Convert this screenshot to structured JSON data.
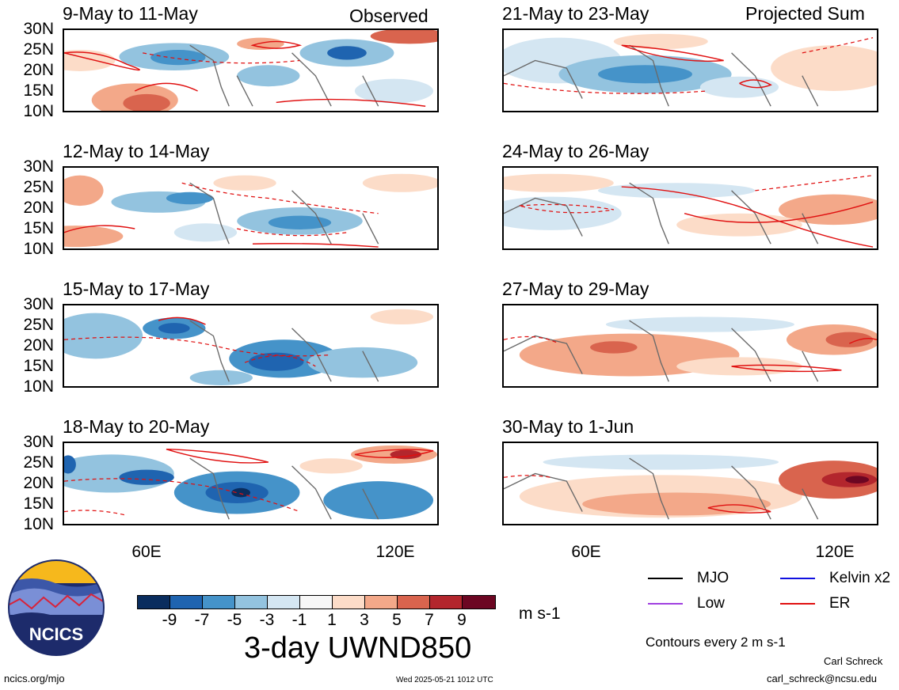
{
  "panels": [
    {
      "title": "9-May to 11-May",
      "label": "Observed"
    },
    {
      "title": "12-May to 14-May",
      "label": ""
    },
    {
      "title": "15-May to 17-May",
      "label": ""
    },
    {
      "title": "18-May to 20-May",
      "label": ""
    },
    {
      "title": "21-May to 23-May",
      "label": "Projected Sum"
    },
    {
      "title": "24-May to 26-May",
      "label": ""
    },
    {
      "title": "27-May to 29-May",
      "label": ""
    },
    {
      "title": "30-May to 1-Jun",
      "label": ""
    }
  ],
  "lat_ticks": [
    "30N",
    "25N",
    "20N",
    "15N",
    "10N"
  ],
  "lon_ticks": [
    "60E",
    "120E"
  ],
  "colorbar": {
    "colors": [
      "#0a2d5e",
      "#1f64b0",
      "#4593c9",
      "#93c3df",
      "#d4e6f2",
      "#f7f7f7",
      "#fcdcc8",
      "#f3a889",
      "#d9644e",
      "#b3262d",
      "#6c0622"
    ],
    "tick_labels": [
      "-9",
      "-7",
      "-5",
      "-3",
      "-1",
      "1",
      "3",
      "5",
      "7",
      "9"
    ],
    "units": "m s-1",
    "title": "3-day UWND850"
  },
  "legend": [
    {
      "label": "MJO",
      "color": "#000000"
    },
    {
      "label": "Kelvin x2",
      "color": "#1010e0"
    },
    {
      "label": "Low",
      "color": "#a040e0"
    },
    {
      "label": "ER",
      "color": "#e01010"
    }
  ],
  "contour_note": "Contours every 2 m s-1",
  "logo_text": "NCICS",
  "footer": {
    "url": "ncics.org/mjo",
    "timestamp": "Wed 2025-05-21 1012 UTC",
    "author": "Carl Schreck",
    "email": "carl_schreck@ncsu.edu"
  }
}
